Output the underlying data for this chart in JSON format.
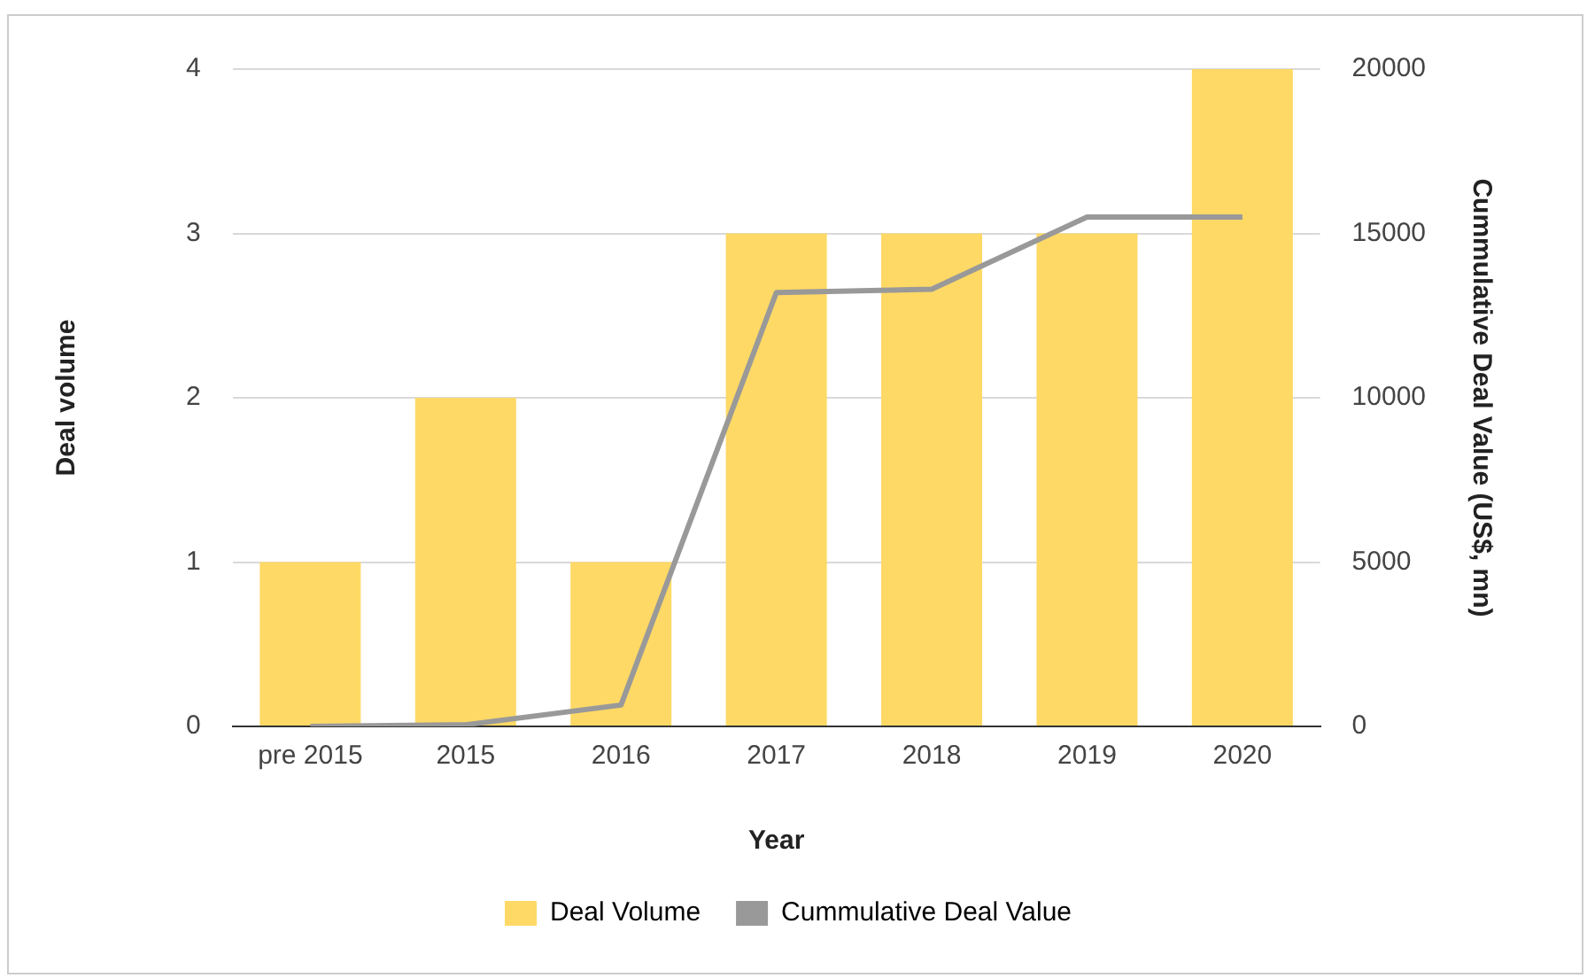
{
  "chart_data": {
    "type": "bar",
    "xlabel": "Year",
    "ylabel": "Deal volume",
    "y2label": "Cummulative Deal Value (US$, mn)",
    "categories": [
      "pre 2015",
      "2015",
      "2016",
      "2017",
      "2018",
      "2019",
      "2020"
    ],
    "series": [
      {
        "name": "Deal Volume",
        "color": "#ffd966",
        "values": [
          1,
          2,
          1,
          3,
          3,
          3,
          4
        ]
      },
      {
        "name": "Cummulative Deal Value",
        "type": "line",
        "axis": "y2",
        "color": "#999999",
        "values": [
          0,
          50,
          650,
          13200,
          13300,
          15500,
          15500
        ]
      }
    ],
    "ylim": [
      0,
      4
    ],
    "yticks": [
      0,
      1,
      2,
      3,
      4
    ],
    "y2lim": [
      0,
      20000
    ],
    "y2ticks": [
      0,
      5000,
      10000,
      15000,
      20000
    ],
    "grid": "y",
    "legend": "bottom",
    "marker": "none"
  }
}
